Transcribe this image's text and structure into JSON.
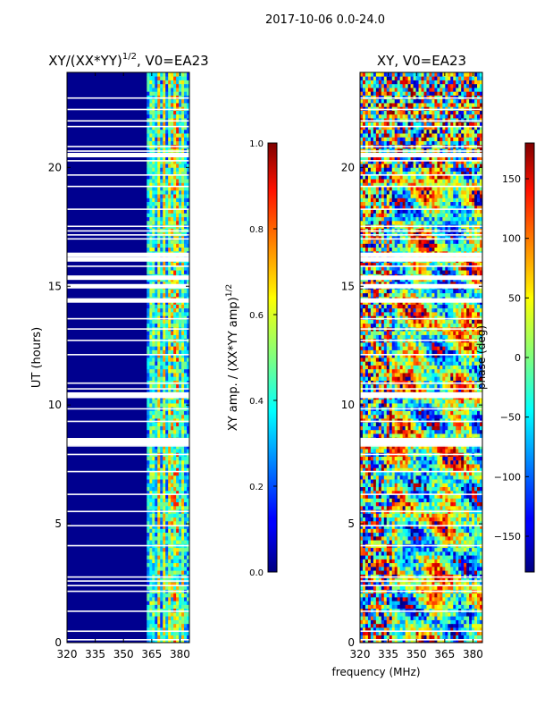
{
  "suptitle": "2017-10-06 0.0-24.0",
  "chart_data": [
    {
      "type": "heatmap",
      "title": "XY/(XX*YY)^{1/2}, V0=EA23",
      "title_main": "XY/(XX*YY)",
      "title_exp": "1/2",
      "title_tail": ", V0=EA23",
      "xlabel": "",
      "ylabel": "UT (hours)",
      "xlim": [
        320,
        385
      ],
      "ylim": [
        0,
        24
      ],
      "xticks": [
        320,
        335,
        350,
        365,
        380
      ],
      "yticks": [
        0,
        5,
        10,
        15,
        20
      ],
      "colorbar": {
        "label_main": "XY amp. / (XX*YY amp)",
        "label_exp": "1/2",
        "range": [
          0.0,
          1.0
        ],
        "ticks": [
          "0.0",
          "0.2",
          "0.4",
          "0.6",
          "0.8",
          "1.0"
        ]
      }
    },
    {
      "type": "heatmap",
      "title": "XY, V0=EA23",
      "xlabel": "frequency (MHz)",
      "ylabel": "",
      "xlim": [
        320,
        385
      ],
      "ylim": [
        0,
        24
      ],
      "xticks": [
        320,
        335,
        350,
        365,
        380
      ],
      "yticks": [
        0,
        5,
        10,
        15,
        20
      ],
      "colorbar": {
        "label": "phase (deg)",
        "range": [
          -180,
          180
        ],
        "ticks": [
          "150",
          "100",
          "50",
          "0",
          "−50",
          "−100",
          "−150"
        ]
      }
    }
  ]
}
